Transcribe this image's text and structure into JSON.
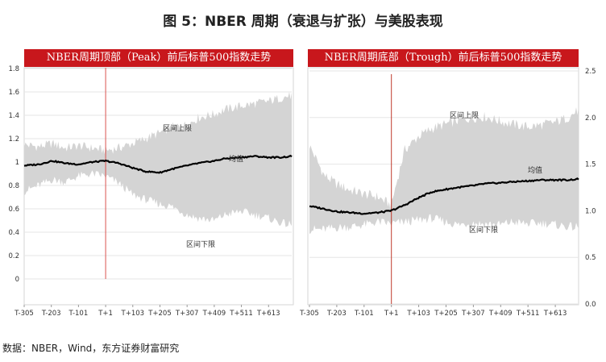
{
  "figure": {
    "title": "图 5：NBER 周期（衰退与扩张）与美股表现",
    "source": "数据：NBER，Wind，东方证券财富研究"
  },
  "chart_data": [
    {
      "type": "area",
      "title": "NBER周期顶部（Peak）前后标普500指数走势",
      "x_ticks": [
        "T-305",
        "T-203",
        "T-101",
        "T+1",
        "T+103",
        "T+205",
        "T+307",
        "T+409",
        "T+511",
        "T+613"
      ],
      "x_range": [
        -305,
        700
      ],
      "ylim": [
        0,
        1.8
      ],
      "y_ticks": [
        0,
        0.2,
        0.4,
        0.6,
        0.8,
        1,
        1.2,
        1.4,
        1.6,
        1.8
      ],
      "y_axis_side": "left",
      "grid": "horizontal",
      "marker_line": {
        "x": 1,
        "color": "#d9534f"
      },
      "annotations": {
        "upper": "区间上限",
        "mean": "均值",
        "lower": "区间下限"
      },
      "series": [
        {
          "role": "upper",
          "x": [
            -305,
            -250,
            -200,
            -150,
            -101,
            -50,
            0,
            50,
            103,
            150,
            205,
            250,
            307,
            350,
            409,
            450,
            511,
            560,
            613,
            660,
            700
          ],
          "y": [
            1.15,
            1.13,
            1.16,
            1.12,
            1.14,
            1.12,
            1.1,
            1.12,
            1.16,
            1.2,
            1.25,
            1.3,
            1.32,
            1.38,
            1.41,
            1.45,
            1.48,
            1.5,
            1.52,
            1.55,
            1.57
          ]
        },
        {
          "role": "mean",
          "color": "#000000",
          "x": [
            -305,
            -250,
            -200,
            -150,
            -101,
            -50,
            0,
            50,
            103,
            150,
            205,
            250,
            307,
            350,
            409,
            450,
            511,
            560,
            613,
            660,
            700
          ],
          "y": [
            0.97,
            0.98,
            1.01,
            0.99,
            0.98,
            1.0,
            1.01,
            0.99,
            0.95,
            0.92,
            0.91,
            0.94,
            0.97,
            0.99,
            1.01,
            1.03,
            1.04,
            1.05,
            1.04,
            1.04,
            1.05
          ]
        },
        {
          "role": "lower",
          "x": [
            -305,
            -250,
            -200,
            -150,
            -101,
            -50,
            0,
            50,
            103,
            150,
            205,
            250,
            307,
            350,
            409,
            450,
            511,
            560,
            613,
            660,
            700
          ],
          "y": [
            0.75,
            0.8,
            0.85,
            0.83,
            0.88,
            0.9,
            0.88,
            0.82,
            0.72,
            0.68,
            0.64,
            0.62,
            0.55,
            0.52,
            0.5,
            0.55,
            0.58,
            0.55,
            0.52,
            0.48,
            0.46
          ]
        }
      ]
    },
    {
      "type": "area",
      "title": "NBER周期底部（Trough）前后标普500指数走势",
      "x_ticks": [
        "T-305",
        "T-203",
        "T-101",
        "T+1",
        "T+103",
        "T+205",
        "T+307",
        "T+409",
        "T+511",
        "T+613"
      ],
      "x_range": [
        -305,
        700
      ],
      "ylim": [
        0,
        2.5
      ],
      "y_ticks": [
        0,
        0.5,
        1,
        1.5,
        2,
        2.5
      ],
      "y_tick_labels": [
        "0.0",
        "0.5",
        "1.0",
        "1.5",
        "2.0",
        "2.5"
      ],
      "y_axis_side": "right",
      "grid": "horizontal",
      "marker_line": {
        "x": 1,
        "color": "#c0392b"
      },
      "annotations": {
        "upper": "区间上限",
        "mean": "均值",
        "lower": "区间下限"
      },
      "series": [
        {
          "role": "upper",
          "x": [
            -305,
            -250,
            -200,
            -150,
            -101,
            -50,
            0,
            50,
            103,
            150,
            205,
            250,
            307,
            350,
            409,
            450,
            511,
            560,
            613,
            660,
            700
          ],
          "y": [
            1.7,
            1.38,
            1.28,
            1.22,
            1.18,
            1.15,
            1.06,
            1.65,
            1.8,
            1.88,
            1.93,
            1.97,
            2.0,
            2.01,
            1.96,
            1.93,
            1.9,
            1.92,
            1.95,
            2.0,
            2.08
          ]
        },
        {
          "role": "mean",
          "color": "#000000",
          "x": [
            -305,
            -250,
            -200,
            -150,
            -101,
            -50,
            0,
            50,
            103,
            150,
            205,
            250,
            307,
            350,
            409,
            450,
            511,
            560,
            613,
            660,
            700
          ],
          "y": [
            1.05,
            1.02,
            0.99,
            0.98,
            0.97,
            0.98,
            1.0,
            1.06,
            1.14,
            1.2,
            1.23,
            1.25,
            1.27,
            1.29,
            1.3,
            1.31,
            1.32,
            1.33,
            1.33,
            1.33,
            1.34
          ]
        },
        {
          "role": "lower",
          "x": [
            -305,
            -250,
            -200,
            -150,
            -101,
            -50,
            0,
            50,
            103,
            150,
            205,
            250,
            307,
            350,
            409,
            450,
            511,
            560,
            613,
            660,
            700
          ],
          "y": [
            0.8,
            0.8,
            0.82,
            0.83,
            0.85,
            0.88,
            0.86,
            0.88,
            0.9,
            0.92,
            0.88,
            0.85,
            0.87,
            0.86,
            0.85,
            0.88,
            0.86,
            0.87,
            0.85,
            0.83,
            0.82
          ]
        }
      ]
    }
  ]
}
